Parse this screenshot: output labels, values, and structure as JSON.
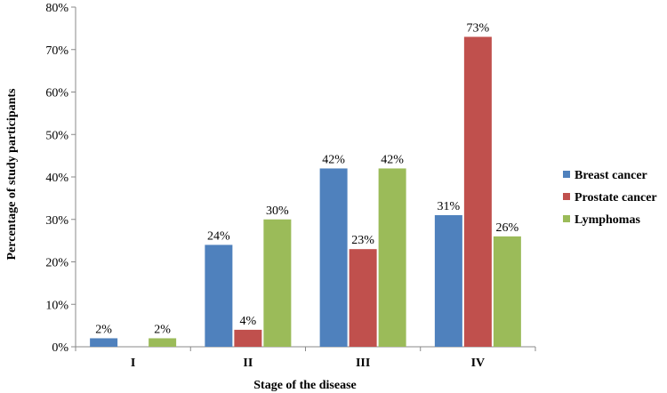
{
  "chart_data": {
    "type": "bar",
    "categories": [
      "I",
      "II",
      "III",
      "IV"
    ],
    "series": [
      {
        "name": "Breast cancer",
        "color": "#4f81bd",
        "values": [
          2,
          24,
          42,
          31
        ],
        "labels": [
          "2%",
          "24%",
          "42%",
          "31%"
        ]
      },
      {
        "name": "Prostate cancer",
        "color": "#c0504d",
        "values": [
          0,
          4,
          23,
          73
        ],
        "labels": [
          "",
          "4%",
          "23%",
          "73%"
        ]
      },
      {
        "name": "Lymphomas",
        "color": "#9bbb59",
        "values": [
          2,
          30,
          42,
          26
        ],
        "labels": [
          "2%",
          "30%",
          "42%",
          "26%"
        ]
      }
    ],
    "xlabel": "Stage of the disease",
    "ylabel": "Percentage of study participants",
    "ylim": [
      0,
      80
    ],
    "yticks": [
      "0%",
      "10%",
      "20%",
      "30%",
      "40%",
      "50%",
      "60%",
      "70%",
      "80%"
    ],
    "grid": false,
    "legend_position": "right"
  }
}
